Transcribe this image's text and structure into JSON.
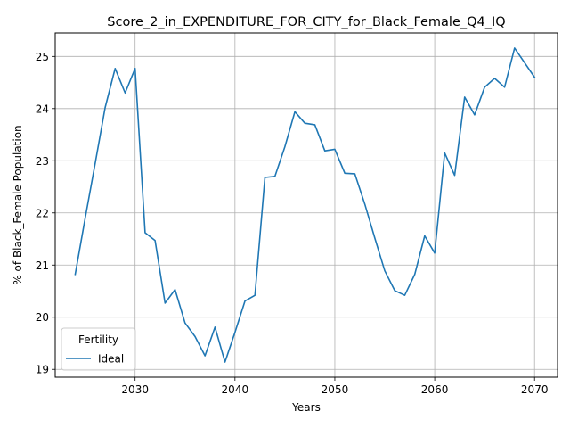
{
  "chart_data": {
    "type": "line",
    "title": "Score_2_in_EXPENDITURE_FOR_CITY_for_Black_Female_Q4_IQ",
    "xlabel": "Years",
    "ylabel": "% of Black_Female Population",
    "xlim": [
      2022,
      2072.3
    ],
    "ylim": [
      18.85,
      25.45
    ],
    "xticks": [
      2030,
      2040,
      2050,
      2060,
      2070
    ],
    "yticks": [
      19,
      20,
      21,
      22,
      23,
      24,
      25
    ],
    "grid": true,
    "legend": {
      "title": "Fertility",
      "placement": "lower-left"
    },
    "series": [
      {
        "name": "Ideal",
        "color": "#1f77b4",
        "x": [
          2024,
          2025,
          2026,
          2027,
          2028,
          2029,
          2030,
          2031,
          2032,
          2033,
          2034,
          2035,
          2036,
          2037,
          2038,
          2039,
          2040,
          2041,
          2042,
          2043,
          2044,
          2045,
          2046,
          2047,
          2048,
          2049,
          2050,
          2051,
          2052,
          2053,
          2054,
          2055,
          2056,
          2057,
          2058,
          2059,
          2060,
          2061,
          2062,
          2063,
          2064,
          2065,
          2066,
          2067,
          2068,
          2069,
          2070
        ],
        "values": [
          20.82,
          21.9,
          22.95,
          24.02,
          24.77,
          24.3,
          24.77,
          21.62,
          21.47,
          20.27,
          20.53,
          19.89,
          19.63,
          19.26,
          19.81,
          19.14,
          19.71,
          20.31,
          20.42,
          22.68,
          22.7,
          23.27,
          23.94,
          23.72,
          23.69,
          23.19,
          23.22,
          22.76,
          22.75,
          22.17,
          21.52,
          20.89,
          20.51,
          20.42,
          20.82,
          21.56,
          21.23,
          23.15,
          22.72,
          24.22,
          23.88,
          24.41,
          24.58,
          24.41,
          25.16,
          24.88,
          24.6
        ]
      }
    ]
  }
}
